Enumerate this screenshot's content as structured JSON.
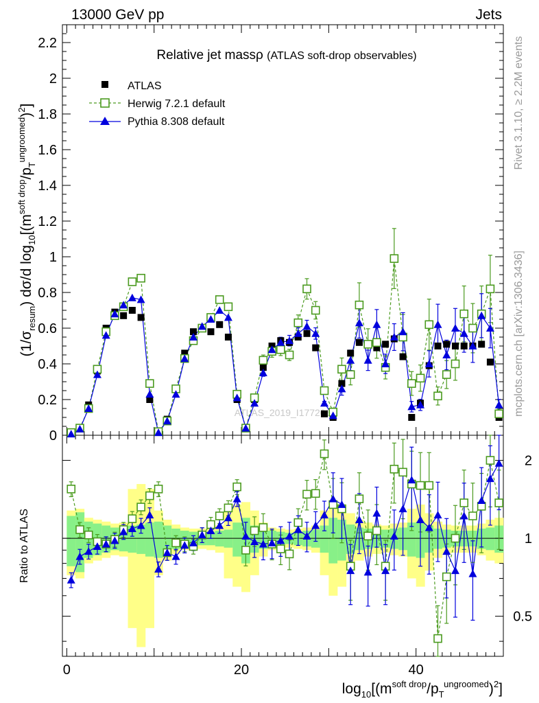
{
  "header": {
    "left": "13000 GeV pp",
    "right": "Jets"
  },
  "side_labels": {
    "rivet": "Rivet 3.1.10, ≥ 2.2M events",
    "mcplots": "mcplots.cern.ch [arXiv:1306.3436]"
  },
  "watermark": "ATLAS_2019_I1772062",
  "colors": {
    "atlas": "#000000",
    "herwig": "#4a9a1e",
    "pythia": "#0000dd",
    "band_inner": "#88f088",
    "band_outer": "#ffff88"
  },
  "chart_data": [
    {
      "type": "line",
      "title": "Relative jet massρ",
      "subtitle": "(ATLAS soft-drop observables)",
      "ylabel_parts": {
        "pre": "(1/σ",
        "sub1": "resum",
        "mid": ") dσ/d log",
        "sub2": "10",
        "rest": "[(m",
        "sup1": "soft drop",
        "slash": "/p",
        "sub3": "T",
        "sup2": "ungroomed",
        "tail": ")",
        "sup3": "2",
        "end": "]"
      },
      "xlim": [
        -0.5,
        50
      ],
      "ylim": [
        0,
        2.3
      ],
      "yticks": [
        "0",
        "0.2",
        "0.4",
        "0.6",
        "0.8",
        "1",
        "1.2",
        "1.4",
        "1.6",
        "1.8",
        "2",
        "2.2"
      ],
      "legend_position": "top-left",
      "x": [
        0.5,
        1.5,
        2.5,
        3.5,
        4.5,
        5.5,
        6.5,
        7.5,
        8.5,
        9.5,
        10.5,
        11.5,
        12.5,
        13.5,
        14.5,
        15.5,
        16.5,
        17.5,
        18.5,
        19.5,
        20.5,
        21.5,
        22.5,
        23.5,
        24.5,
        25.5,
        26.5,
        27.5,
        28.5,
        29.5,
        30.5,
        31.5,
        32.5,
        33.5,
        34.5,
        35.5,
        36.5,
        37.5,
        38.5,
        39.5,
        40.5,
        41.5,
        42.5,
        43.5,
        44.5,
        45.5,
        46.5,
        47.5,
        48.5,
        49.5
      ],
      "series": [
        {
          "name": "ATLAS",
          "values": [
            0.01,
            0.04,
            0.17,
            0.36,
            0.6,
            0.69,
            0.67,
            0.7,
            0.66,
            0.2,
            0.02,
            0.09,
            0.26,
            0.46,
            0.58,
            0.6,
            0.58,
            0.62,
            0.55,
            0.2,
            0.04,
            0.2,
            0.38,
            0.5,
            0.53,
            0.52,
            0.55,
            0.57,
            0.49,
            0.12,
            0.1,
            0.29,
            0.46,
            0.52,
            0.51,
            0.49,
            0.51,
            0.54,
            0.44,
            0.1,
            0.18,
            0.39,
            0.5,
            0.51,
            0.5,
            0.5,
            0.5,
            0.51,
            0.41,
            0.1
          ]
        },
        {
          "name": "Herwig 7.2.1 default",
          "values": [
            0.015,
            0.04,
            0.15,
            0.37,
            0.58,
            0.67,
            0.72,
            0.86,
            0.88,
            0.29,
            0.02,
            0.08,
            0.26,
            0.43,
            0.53,
            0.6,
            0.66,
            0.76,
            0.72,
            0.23,
            0.04,
            0.21,
            0.42,
            0.47,
            0.48,
            0.45,
            0.63,
            0.82,
            0.7,
            0.25,
            0.13,
            0.37,
            0.34,
            0.73,
            0.51,
            0.52,
            0.38,
            0.99,
            0.55,
            0.29,
            0.32,
            0.62,
            0.22,
            0.34,
            0.4,
            0.68,
            0.6,
            0.68,
            0.82,
            0.12
          ]
        },
        {
          "name": "Pythia 8.308 default",
          "values": [
            0.007,
            0.035,
            0.15,
            0.34,
            0.56,
            0.68,
            0.73,
            0.77,
            0.76,
            0.23,
            0.015,
            0.08,
            0.23,
            0.43,
            0.55,
            0.61,
            0.65,
            0.7,
            0.66,
            0.21,
            0.04,
            0.18,
            0.35,
            0.48,
            0.52,
            0.53,
            0.57,
            0.61,
            0.57,
            0.18,
            0.11,
            0.26,
            0.42,
            0.63,
            0.42,
            0.62,
            0.4,
            0.55,
            0.58,
            0.16,
            0.17,
            0.4,
            0.62,
            0.45,
            0.6,
            0.57,
            0.5,
            0.67,
            0.6,
            0.17
          ]
        }
      ]
    },
    {
      "type": "line",
      "ylabel": "Ratio to ATLAS",
      "xlabel_parts": {
        "pre": "log",
        "sub1": "10",
        "rest": "[(m",
        "sup1": "soft drop",
        "slash": "/p",
        "sub2": "T",
        "sup2": "ungroomed",
        "tail": ")",
        "sup3": "2",
        "end": "]"
      },
      "xticks": [
        "0",
        "20",
        "40"
      ],
      "yticks_right": [
        "0.5",
        "1",
        "2"
      ],
      "ylim": [
        0.35,
        2.5
      ],
      "log_y": true,
      "reference_line": 1,
      "series": [
        {
          "name": "Herwig 7.2.1 default",
          "values": [
            1.55,
            1.08,
            1.03,
            0.97,
            0.95,
            0.99,
            1.08,
            1.19,
            1.32,
            1.46,
            1.55,
            0.88,
            0.96,
            0.95,
            0.93,
            1.03,
            1.13,
            1.22,
            1.31,
            1.58,
            0.9,
            1.07,
            1.1,
            0.95,
            0.91,
            0.87,
            1.15,
            1.48,
            1.49,
            2.12,
            1.35,
            1.3,
            0.78,
            1.42,
            1.02,
            1.07,
            0.78,
            1.85,
            1.8,
            1.62,
            1.6,
            1.6,
            0.41,
            0.71,
            1.0,
            1.37,
            1.22,
            1.33,
            2.0,
            1.37
          ]
        },
        {
          "name": "Pythia 8.308 default",
          "values": [
            0.69,
            0.85,
            0.89,
            0.93,
            0.95,
            0.98,
            1.06,
            1.09,
            1.12,
            1.23,
            0.76,
            0.88,
            0.85,
            0.94,
            0.96,
            1.03,
            1.07,
            1.12,
            1.2,
            1.42,
            1.02,
            0.97,
            0.95,
            0.96,
            0.98,
            1.02,
            1.08,
            1.02,
            1.12,
            1.23,
            1.42,
            1.35,
            0.75,
            1.18,
            0.74,
            1.25,
            0.75,
            1.02,
            1.3,
            1.68,
            1.18,
            1.1,
            1.23,
            0.89,
            0.75,
            1.22,
            0.73,
            1.4,
            1.7,
            1.95
          ]
        }
      ],
      "band_inner_halfwidth": [
        0.22,
        0.26,
        0.16,
        0.14,
        0.12,
        0.1,
        0.11,
        0.12,
        0.13,
        0.15,
        0.16,
        0.12,
        0.09,
        0.07,
        0.06,
        0.06,
        0.06,
        0.07,
        0.08,
        0.15,
        0.2,
        0.12,
        0.09,
        0.07,
        0.06,
        0.05,
        0.06,
        0.07,
        0.08,
        0.12,
        0.2,
        0.18,
        0.13,
        0.1,
        0.09,
        0.08,
        0.08,
        0.09,
        0.1,
        0.15,
        0.16,
        0.12,
        0.09,
        0.08,
        0.07,
        0.07,
        0.07,
        0.09,
        0.1,
        0.12
      ],
      "band_outer_halfwidth": [
        0.28,
        0.3,
        0.2,
        0.18,
        0.16,
        0.14,
        0.15,
        0.55,
        0.62,
        0.55,
        0.28,
        0.18,
        0.13,
        0.1,
        0.09,
        0.09,
        0.1,
        0.12,
        0.3,
        0.35,
        0.38,
        0.28,
        0.15,
        0.1,
        0.09,
        0.08,
        0.09,
        0.1,
        0.12,
        0.28,
        0.4,
        0.35,
        0.25,
        0.18,
        0.15,
        0.13,
        0.12,
        0.14,
        0.15,
        0.3,
        0.35,
        0.25,
        0.16,
        0.13,
        0.12,
        0.12,
        0.12,
        0.14,
        0.18,
        0.2
      ]
    }
  ]
}
